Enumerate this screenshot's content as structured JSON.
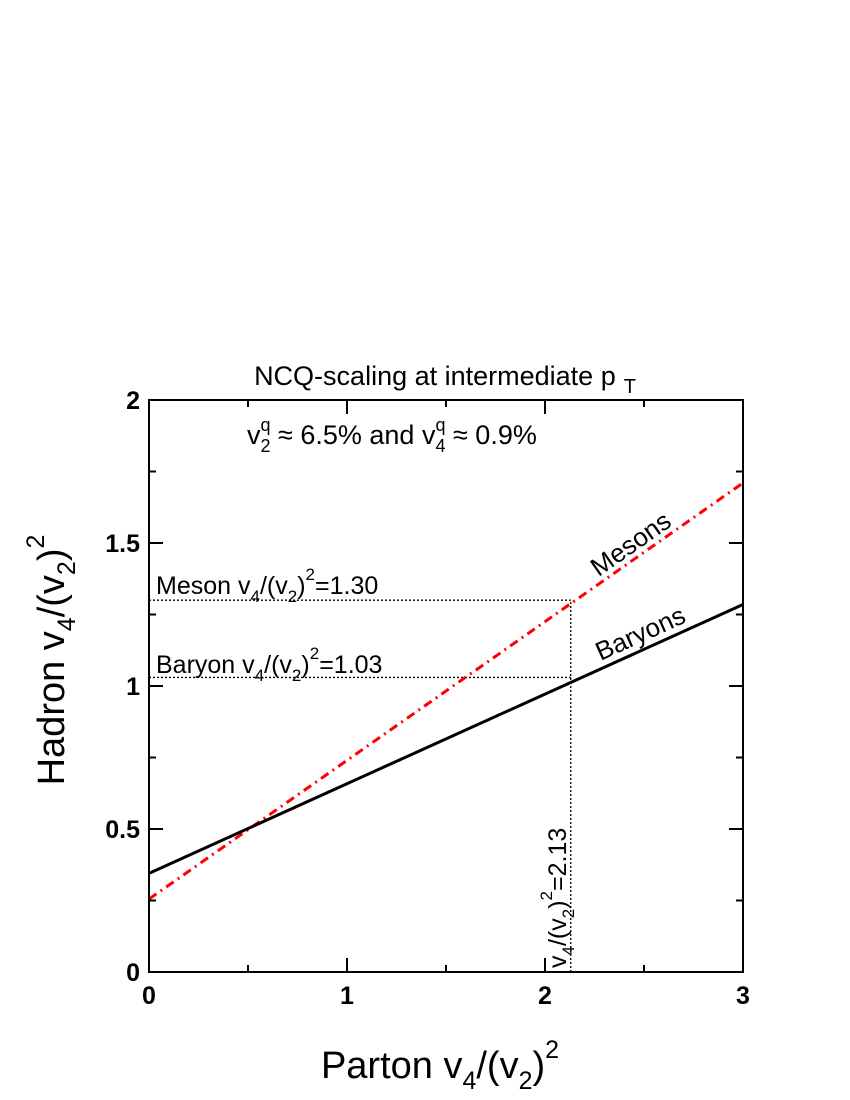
{
  "chart_data": {
    "type": "line",
    "title": "NCQ-scaling at intermediate p",
    "title_sub": "T",
    "subtitle": {
      "v2_sym": "v",
      "v2_sup": "q",
      "v2_sub": "2",
      "v2_rest": " ≈ 6.5% and ",
      "v4_sym": "v",
      "v4_sup": "q",
      "v4_sub": "4",
      "v4_rest": " ≈ 0.9%"
    },
    "xlabel": {
      "prefix": "Parton v",
      "sub1": "4",
      "mid": "/(v",
      "sub2": "2",
      "close": ")",
      "sup": "2"
    },
    "ylabel": {
      "prefix": "Hadron v",
      "sub1": "4",
      "mid": "/(v",
      "sub2": "2",
      "close": ")",
      "sup": "2"
    },
    "xlim": [
      0,
      3
    ],
    "ylim": [
      0,
      2
    ],
    "x_ticks": [
      0,
      1,
      2,
      3
    ],
    "x_tick_labels": [
      "0",
      "1",
      "2",
      "3"
    ],
    "y_ticks": [
      0,
      0.5,
      1,
      1.5,
      2
    ],
    "y_tick_labels": [
      "0",
      "0.5",
      "1",
      "1.5",
      "2"
    ],
    "grid": false,
    "series": [
      {
        "name": "Mesons",
        "x": [
          0,
          3
        ],
        "y": [
          0.255,
          1.71
        ],
        "color": "#ff0000",
        "style": "dash-dot"
      },
      {
        "name": "Baryons",
        "x": [
          0,
          3
        ],
        "y": [
          0.345,
          1.285
        ],
        "color": "#000000",
        "style": "solid"
      }
    ],
    "reference_lines": {
      "meson_level": {
        "y": 1.3,
        "x_from": 0,
        "x_to": 2.13
      },
      "baryon_level": {
        "y": 1.03,
        "x_from": 0,
        "x_to": 2.13
      },
      "parton_value": {
        "x": 2.13,
        "y_from": 0,
        "y_to": 1.3
      }
    },
    "annotations": {
      "meson": {
        "prefix": "Meson v",
        "sub1": "4",
        "mid": "/(v",
        "sub2": "2",
        "close": ")",
        "sup": "2",
        "value": "=1.30"
      },
      "baryon": {
        "prefix": "Baryon v",
        "sub1": "4",
        "mid": "/(v",
        "sub2": "2",
        "close": ")",
        "sup": "2",
        "value": "=1.03"
      },
      "parton": {
        "prefix": "v",
        "sub1": "4",
        "mid": "/(v",
        "sub2": "2",
        "close": ")",
        "sup": "2",
        "value": "=2.13"
      }
    }
  }
}
